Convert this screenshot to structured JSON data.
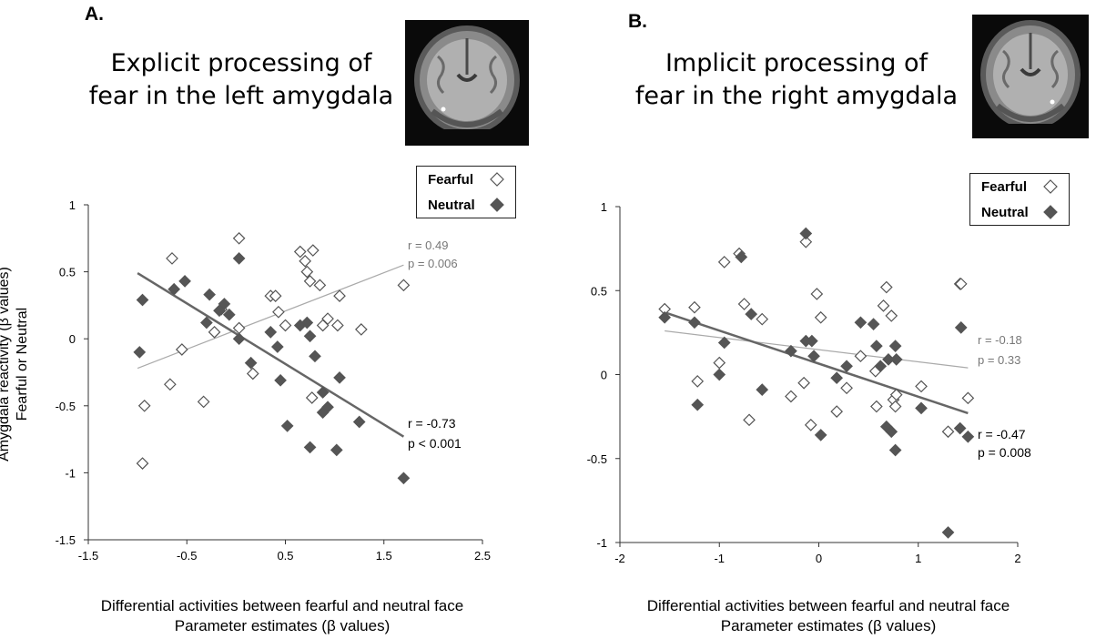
{
  "panelA": {
    "letter": "A.",
    "title_line1": "Explicit processing of",
    "title_line2": "fear in the left amygdala",
    "legend": {
      "fearful": "Fearful",
      "neutral": "Neutral"
    },
    "ylabel_line1": "Amygdala reactivity (β values)",
    "ylabel_line2": "Fearful or  Neutral",
    "xlabel_line1": "Differential activities  between fearful  and neutral face",
    "xlabel_line2": "Parameter estimates (β values)",
    "stats_fearful": {
      "r": "r = 0.49",
      "p": "p = 0.006"
    },
    "stats_neutral": {
      "r": "r = -0.73",
      "p": "p < 0.001"
    }
  },
  "panelB": {
    "letter": "B.",
    "title_line1": "Implicit processing of",
    "title_line2": "fear in the right amygdala",
    "legend": {
      "fearful": "Fearful",
      "neutral": "Neutral"
    },
    "xlabel_line1": "Differential activities  between fearful  and neutral face",
    "xlabel_line2": "Parameter estimates (β values)",
    "stats_fearful": {
      "r": "r = -0.18",
      "p": "p = 0.33"
    },
    "stats_neutral": {
      "r": "r = -0.47",
      "p": "p = 0.008"
    }
  },
  "colors": {
    "neutral": "#555555",
    "fearful_edge": "#555555",
    "fit_fearful": "#aaaaaa",
    "fit_neutral": "#666666"
  },
  "chart_data": [
    {
      "type": "scatter",
      "title": "Explicit processing of fear in the left amygdala",
      "xlabel": "Differential activities  between fearful  and neutral face Parameter estimates (β values)",
      "ylabel": "Amygdala reactivity (β values) Fearful or  Neutral",
      "xlim": [
        -1.5,
        2.5
      ],
      "ylim": [
        -1.5,
        1
      ],
      "xticks": [
        -1.5,
        -0.5,
        0.5,
        1.5,
        2.5
      ],
      "yticks": [
        1,
        0.5,
        0,
        -0.5,
        -1,
        -1.5
      ],
      "legend_position": "top-right",
      "series": [
        {
          "name": "Fearful",
          "marker": "open-diamond",
          "points": [
            [
              -0.95,
              -0.93
            ],
            [
              -0.93,
              -0.5
            ],
            [
              -0.65,
              0.6
            ],
            [
              -0.67,
              -0.34
            ],
            [
              -0.55,
              -0.08
            ],
            [
              -0.33,
              -0.47
            ],
            [
              -0.22,
              0.05
            ],
            [
              -0.15,
              0.22
            ],
            [
              0.03,
              0.75
            ],
            [
              0.03,
              0.08
            ],
            [
              0.17,
              -0.26
            ],
            [
              0.35,
              0.32
            ],
            [
              0.4,
              0.32
            ],
            [
              0.43,
              0.2
            ],
            [
              0.5,
              0.1
            ],
            [
              0.65,
              0.65
            ],
            [
              0.7,
              0.58
            ],
            [
              0.72,
              0.5
            ],
            [
              0.75,
              0.43
            ],
            [
              0.78,
              0.66
            ],
            [
              0.77,
              -0.44
            ],
            [
              0.85,
              0.4
            ],
            [
              0.88,
              0.1
            ],
            [
              0.93,
              0.15
            ],
            [
              1.03,
              0.1
            ],
            [
              1.05,
              0.32
            ],
            [
              1.27,
              0.07
            ],
            [
              1.7,
              0.4
            ]
          ],
          "fit": {
            "x": [
              -1.0,
              1.7
            ],
            "y": [
              -0.22,
              0.55
            ]
          }
        },
        {
          "name": "Neutral",
          "marker": "filled-diamond",
          "points": [
            [
              -0.98,
              -0.1
            ],
            [
              -0.95,
              0.29
            ],
            [
              -0.63,
              0.37
            ],
            [
              -0.52,
              0.43
            ],
            [
              -0.3,
              0.12
            ],
            [
              -0.27,
              0.33
            ],
            [
              -0.17,
              0.21
            ],
            [
              -0.12,
              0.26
            ],
            [
              -0.07,
              0.18
            ],
            [
              0.03,
              0.0
            ],
            [
              0.03,
              0.6
            ],
            [
              0.15,
              -0.18
            ],
            [
              0.35,
              0.05
            ],
            [
              0.42,
              -0.06
            ],
            [
              0.45,
              -0.31
            ],
            [
              0.52,
              -0.65
            ],
            [
              0.65,
              0.1
            ],
            [
              0.72,
              0.12
            ],
            [
              0.75,
              0.02
            ],
            [
              0.75,
              -0.81
            ],
            [
              0.8,
              -0.13
            ],
            [
              0.88,
              -0.4
            ],
            [
              0.88,
              -0.55
            ],
            [
              0.93,
              -0.51
            ],
            [
              1.02,
              -0.83
            ],
            [
              1.05,
              -0.29
            ],
            [
              1.25,
              -0.62
            ],
            [
              1.7,
              -1.04
            ]
          ],
          "fit": {
            "x": [
              -1.0,
              1.7
            ],
            "y": [
              0.49,
              -0.73
            ]
          }
        }
      ],
      "annotations": [
        "r = 0.49",
        "p = 0.006",
        "r = -0.73",
        "p < 0.001"
      ]
    },
    {
      "type": "scatter",
      "title": "Implicit processing of fear in the right amygdala",
      "xlabel": "Differential activities  between fearful  and neutral face Parameter estimates (β values)",
      "xlim": [
        -2,
        2
      ],
      "ylim": [
        -1,
        1
      ],
      "xticks": [
        -2,
        -1,
        0,
        1,
        2
      ],
      "yticks": [
        1,
        0.5,
        0,
        -0.5,
        -1
      ],
      "legend_position": "top-right",
      "series": [
        {
          "name": "Fearful",
          "marker": "open-diamond",
          "points": [
            [
              -1.55,
              0.39
            ],
            [
              -1.25,
              0.4
            ],
            [
              -1.22,
              -0.04
            ],
            [
              -1.0,
              0.07
            ],
            [
              -0.95,
              0.67
            ],
            [
              -0.8,
              0.72
            ],
            [
              -0.75,
              0.42
            ],
            [
              -0.7,
              -0.27
            ],
            [
              -0.57,
              0.33
            ],
            [
              -0.28,
              -0.13
            ],
            [
              -0.15,
              -0.05
            ],
            [
              -0.13,
              0.79
            ],
            [
              -0.08,
              -0.3
            ],
            [
              -0.02,
              0.48
            ],
            [
              0.02,
              0.34
            ],
            [
              0.18,
              -0.22
            ],
            [
              0.28,
              -0.08
            ],
            [
              0.42,
              0.11
            ],
            [
              0.57,
              0.02
            ],
            [
              0.58,
              -0.19
            ],
            [
              0.65,
              0.41
            ],
            [
              0.68,
              0.52
            ],
            [
              0.73,
              0.35
            ],
            [
              0.75,
              -0.15
            ],
            [
              0.77,
              -0.19
            ],
            [
              0.78,
              -0.12
            ],
            [
              1.03,
              -0.07
            ],
            [
              1.3,
              -0.34
            ],
            [
              1.42,
              0.54
            ],
            [
              1.43,
              0.54
            ],
            [
              1.5,
              -0.14
            ]
          ],
          "fit": {
            "x": [
              -1.55,
              1.5
            ],
            "y": [
              0.26,
              0.04
            ]
          }
        },
        {
          "name": "Neutral",
          "marker": "filled-diamond",
          "points": [
            [
              -1.55,
              0.34
            ],
            [
              -1.25,
              0.31
            ],
            [
              -1.22,
              -0.18
            ],
            [
              -1.0,
              0.0
            ],
            [
              -0.95,
              0.19
            ],
            [
              -0.78,
              0.7
            ],
            [
              -0.68,
              0.36
            ],
            [
              -0.57,
              -0.09
            ],
            [
              -0.28,
              0.14
            ],
            [
              -0.13,
              0.2
            ],
            [
              -0.13,
              0.84
            ],
            [
              -0.07,
              0.2
            ],
            [
              -0.05,
              0.11
            ],
            [
              0.02,
              -0.36
            ],
            [
              0.18,
              -0.02
            ],
            [
              0.28,
              0.05
            ],
            [
              0.42,
              0.31
            ],
            [
              0.55,
              0.3
            ],
            [
              0.58,
              0.17
            ],
            [
              0.62,
              0.05
            ],
            [
              0.68,
              -0.31
            ],
            [
              0.7,
              0.09
            ],
            [
              0.73,
              -0.34
            ],
            [
              0.77,
              0.17
            ],
            [
              0.77,
              -0.45
            ],
            [
              0.78,
              0.09
            ],
            [
              1.03,
              -0.2
            ],
            [
              1.3,
              -0.94
            ],
            [
              1.42,
              -0.32
            ],
            [
              1.43,
              0.28
            ],
            [
              1.5,
              -0.37
            ]
          ],
          "fit": {
            "x": [
              -1.55,
              1.5
            ],
            "y": [
              0.37,
              -0.23
            ]
          }
        }
      ],
      "annotations": [
        "r = -0.18",
        "p = 0.33",
        "r = -0.47",
        "p = 0.008"
      ]
    }
  ]
}
